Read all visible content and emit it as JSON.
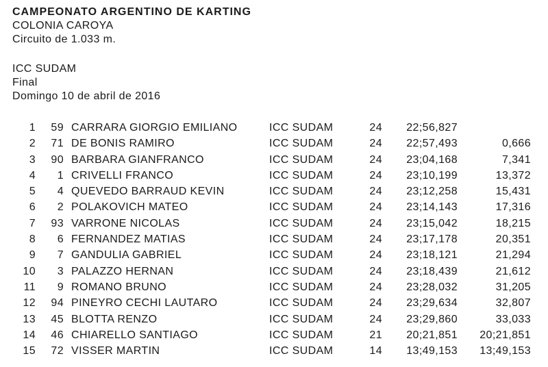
{
  "page": {
    "background": "#ffffff",
    "text_color": "#1a1a1a"
  },
  "header": {
    "championship": "CAMPEONATO ARGENTINO DE KARTING",
    "location": "COLONIA CAROYA",
    "circuit": "Circuito de 1.033 m."
  },
  "session": {
    "category": "ICC SUDAM",
    "name": "Final",
    "date": "Domingo 10 de abril de 2016"
  },
  "results": {
    "rows": [
      {
        "pos": "1",
        "kart": "59",
        "driver": "CARRARA GIORGIO EMILIANO",
        "class": "ICC SUDAM",
        "laps": "24",
        "time": "22;56,827",
        "gap": ""
      },
      {
        "pos": "2",
        "kart": "71",
        "driver": "DE BONIS RAMIRO",
        "class": "ICC SUDAM",
        "laps": "24",
        "time": "22;57,493",
        "gap": "0,666"
      },
      {
        "pos": "3",
        "kart": "90",
        "driver": "BARBARA GIANFRANCO",
        "class": "ICC SUDAM",
        "laps": "24",
        "time": "23;04,168",
        "gap": "7,341"
      },
      {
        "pos": "4",
        "kart": "1",
        "driver": "CRIVELLI FRANCO",
        "class": "ICC SUDAM",
        "laps": "24",
        "time": "23;10,199",
        "gap": "13,372"
      },
      {
        "pos": "5",
        "kart": "4",
        "driver": "QUEVEDO BARRAUD KEVIN",
        "class": "ICC SUDAM",
        "laps": "24",
        "time": "23;12,258",
        "gap": "15,431"
      },
      {
        "pos": "6",
        "kart": "2",
        "driver": "POLAKOVICH MATEO",
        "class": "ICC SUDAM",
        "laps": "24",
        "time": "23;14,143",
        "gap": "17,316"
      },
      {
        "pos": "7",
        "kart": "93",
        "driver": "VARRONE NICOLAS",
        "class": "ICC SUDAM",
        "laps": "24",
        "time": "23;15,042",
        "gap": "18,215"
      },
      {
        "pos": "8",
        "kart": "6",
        "driver": "FERNANDEZ MATIAS",
        "class": "ICC SUDAM",
        "laps": "24",
        "time": "23;17,178",
        "gap": "20,351"
      },
      {
        "pos": "9",
        "kart": "7",
        "driver": "GANDULIA GABRIEL",
        "class": "ICC SUDAM",
        "laps": "24",
        "time": "23;18,121",
        "gap": "21,294"
      },
      {
        "pos": "10",
        "kart": "3",
        "driver": "PALAZZO HERNAN",
        "class": "ICC SUDAM",
        "laps": "24",
        "time": "23;18,439",
        "gap": "21,612"
      },
      {
        "pos": "11",
        "kart": "9",
        "driver": "ROMANO BRUNO",
        "class": "ICC SUDAM",
        "laps": "24",
        "time": "23;28,032",
        "gap": "31,205"
      },
      {
        "pos": "12",
        "kart": "94",
        "driver": "PINEYRO CECHI LAUTARO",
        "class": "ICC SUDAM",
        "laps": "24",
        "time": "23;29,634",
        "gap": "32,807"
      },
      {
        "pos": "13",
        "kart": "45",
        "driver": "BLOTTA RENZO",
        "class": "ICC SUDAM",
        "laps": "24",
        "time": "23;29,860",
        "gap": "33,033"
      },
      {
        "pos": "14",
        "kart": "46",
        "driver": "CHIARELLO SANTIAGO",
        "class": "ICC SUDAM",
        "laps": "21",
        "time": "20;21,851",
        "gap": "20;21,851"
      },
      {
        "pos": "15",
        "kart": "72",
        "driver": "VISSER MARTIN",
        "class": "ICC SUDAM",
        "laps": "14",
        "time": "13;49,153",
        "gap": "13;49,153"
      }
    ]
  }
}
